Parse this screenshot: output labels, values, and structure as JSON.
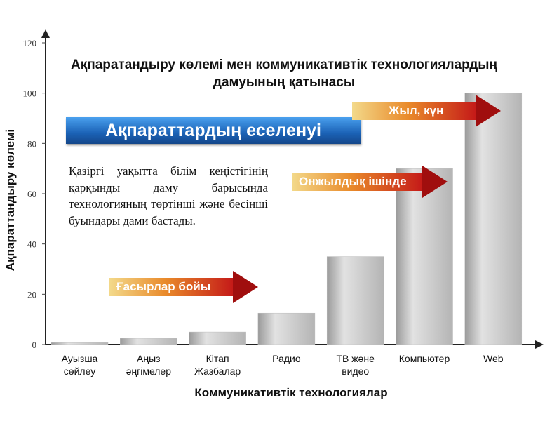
{
  "chart_data": {
    "type": "bar",
    "title": "Ақпаратандыру көлемі  мен коммуникативтік технологиялардың дамуының қатынасы",
    "xlabel": "Коммуникативтік технологиялар",
    "ylabel": "Ақпараттандыру көлемі",
    "ylim": [
      0,
      120
    ],
    "yticks": [
      "0",
      "20",
      "40",
      "60",
      "80",
      "100",
      "120"
    ],
    "categories": [
      [
        "Ауызша",
        "сөйлеу"
      ],
      [
        "Аңыз",
        "әңгімелер"
      ],
      [
        "Кітап",
        "Жазбалар"
      ],
      [
        "Радио"
      ],
      [
        "ТВ және",
        "видео"
      ],
      [
        "Компьютер"
      ],
      [
        "Web"
      ]
    ],
    "values": [
      0.8,
      2.5,
      5,
      12.5,
      35,
      70,
      100
    ],
    "grid": false,
    "bar_color": "#c8c8c8"
  },
  "annotations": {
    "banner": "Ақпараттардың еселенуі",
    "paragraph": "Қазіргі уақытта білім кеңістігінің қарқынды даму барысында технологияның төртінші және бесінші буындары дами бастады.",
    "arrow_centuries": "Ғасырлар бойы",
    "arrow_decade": "Онжылдық ішінде",
    "arrow_year_day": "Жыл, күн"
  }
}
